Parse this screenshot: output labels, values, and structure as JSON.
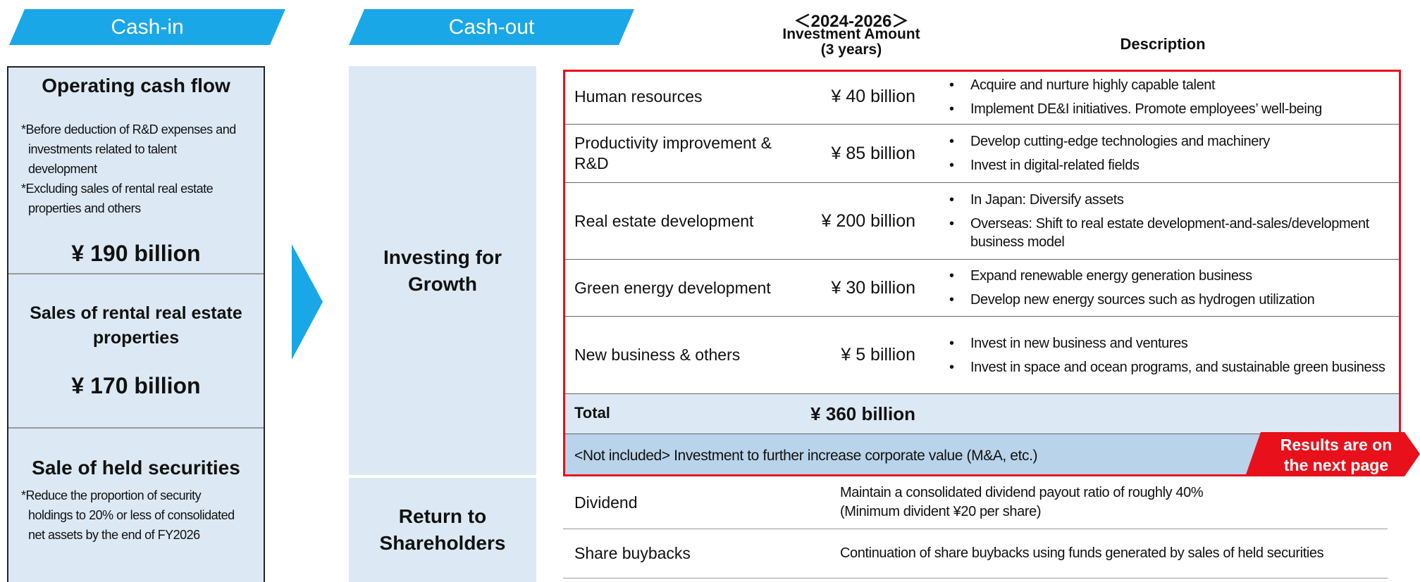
{
  "cash_in": {
    "title": "Cash-in",
    "sections": [
      {
        "title": "Operating cash flow",
        "notes": [
          "*Before deduction of R&D expenses and investments related to talent development",
          "*Excluding sales of rental real estate properties and others"
        ],
        "amount": "¥ 190 billion"
      },
      {
        "title": "Sales of rental real estate properties",
        "amount": "¥ 170 billion"
      },
      {
        "title": "Sale of held securities",
        "notes": [
          "*Reduce the proportion of security holdings to 20% or less of consolidated net assets by the end of FY2026"
        ]
      }
    ]
  },
  "cash_out": {
    "title": "Cash-out",
    "groups": [
      "Investing for Growth",
      "Return to Shareholders"
    ]
  },
  "header": {
    "period": "＜2024-2026＞",
    "amount": [
      "Investment Amount",
      "(3 years)"
    ],
    "description": "Description"
  },
  "investments": {
    "rows": [
      {
        "item": "Human resources",
        "amount": "¥ 40 billion",
        "description": [
          "Acquire and nurture highly capable talent",
          "Implement DE&I initiatives. Promote employees’ well-being"
        ]
      },
      {
        "item": "Productivity improvement & R&D",
        "amount": "¥ 85 billion",
        "description": [
          "Develop cutting-edge technologies and machinery",
          "Invest in digital-related fields"
        ]
      },
      {
        "item": "Real estate development",
        "amount": "¥ 200 billion",
        "description": [
          "In Japan: Diversify assets",
          "Overseas: Shift to real estate development-and-sales/development business model"
        ]
      },
      {
        "item": "Green energy development",
        "amount": "¥ 30 billion",
        "description": [
          "Expand renewable energy generation business",
          "Develop new energy sources such as hydrogen utilization"
        ]
      },
      {
        "item": "New business & others",
        "amount": "¥ 5 billion",
        "description": [
          "Invest in new business and ventures",
          "Invest in space and ocean programs, and sustainable green business"
        ]
      }
    ],
    "total": {
      "label": "Total",
      "amount": "¥ 360 billion"
    },
    "not_included": "<Not included> Investment to further increase corporate value (M&A, etc.)",
    "badge": "Results are on the next page"
  },
  "shareholder_returns": [
    {
      "item": "Dividend",
      "description": [
        "Maintain a consolidated dividend payout ratio of roughly 40%",
        "(Minimum divident ¥20 per share)"
      ]
    },
    {
      "item": "Share buybacks",
      "description": [
        "Continuation of share buybacks using funds generated by sales of held securities"
      ]
    }
  ]
}
